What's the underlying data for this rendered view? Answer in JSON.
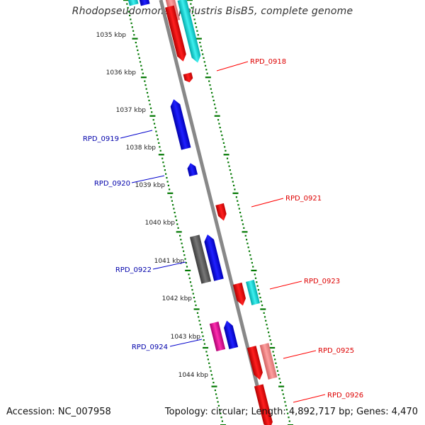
{
  "title": "Rhodopseudomonas palustris BisB5, complete genome",
  "footer": {
    "accession": "Accession: NC_007958",
    "summary": "Topology: circular; Length: 4,892,717 bp; Genes: 4,470"
  },
  "kbp_labels": [
    "1035 kbp",
    "1036 kbp",
    "1037 kbp",
    "1038 kbp",
    "1039 kbp",
    "1040 kbp",
    "1041 kbp",
    "1042 kbp",
    "1043 kbp",
    "1044 kbp"
  ],
  "colors": {
    "forward": "#ff0000",
    "reverse": "#0000ff",
    "cyan": "#00d8d8",
    "pink": "#f08080",
    "magenta": "#e0109a",
    "gray": "#666666",
    "backbone": "#888888",
    "ticks": "#007700"
  },
  "gene_labels": [
    {
      "text": "RPD_0918",
      "strand": "forward"
    },
    {
      "text": "RPD_0919",
      "strand": "reverse"
    },
    {
      "text": "RPD_0920",
      "strand": "reverse"
    },
    {
      "text": "RPD_0921",
      "strand": "forward"
    },
    {
      "text": "RPD_0922",
      "strand": "reverse"
    },
    {
      "text": "RPD_0923",
      "strand": "forward"
    },
    {
      "text": "RPD_0924",
      "strand": "reverse"
    },
    {
      "text": "RPD_0925",
      "strand": "forward"
    },
    {
      "text": "RPD_0926",
      "strand": "forward"
    }
  ]
}
